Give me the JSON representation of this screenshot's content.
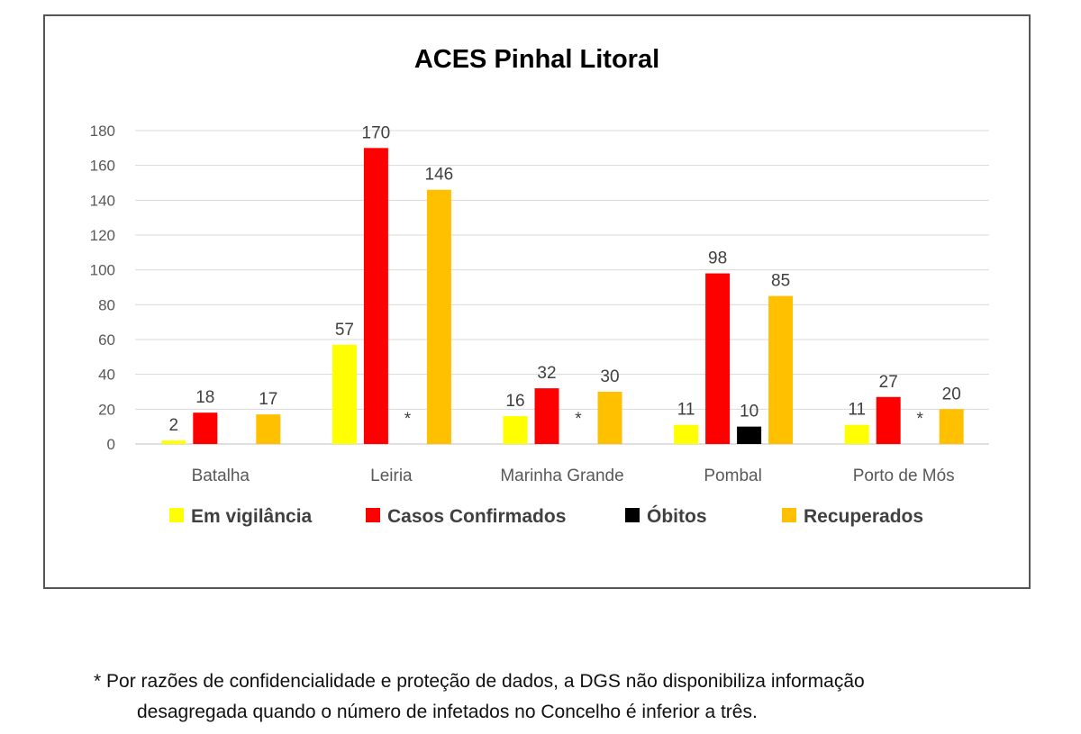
{
  "chart_data": {
    "type": "bar",
    "title": "ACES Pinhal Litoral",
    "xlabel": "",
    "ylabel": "",
    "ylim": [
      0,
      180
    ],
    "yticks": [
      0,
      20,
      40,
      60,
      80,
      100,
      120,
      140,
      160,
      180
    ],
    "grid": true,
    "legend_position": "bottom",
    "categories": [
      "Batalha",
      "Leiria",
      "Marinha Grande",
      "Pombal",
      "Porto de Mós"
    ],
    "series": [
      {
        "name": "Em vigilância",
        "color": "#ffff00",
        "values": [
          2,
          57,
          16,
          11,
          11
        ]
      },
      {
        "name": "Casos Confirmados",
        "color": "#ff0000",
        "values": [
          18,
          170,
          32,
          98,
          27
        ]
      },
      {
        "name": "Óbitos",
        "color": "#000000",
        "values": [
          null,
          "*",
          "*",
          10,
          "*"
        ]
      },
      {
        "name": "Recuperados",
        "color": "#ffc000",
        "values": [
          17,
          146,
          30,
          85,
          20
        ]
      }
    ]
  },
  "footnote": {
    "line1": "* Por razões de confidencialidade e proteção de dados, a DGS não disponibiliza informação",
    "line2": "desagregada quando o número de infetados no Concelho é inferior a três."
  }
}
